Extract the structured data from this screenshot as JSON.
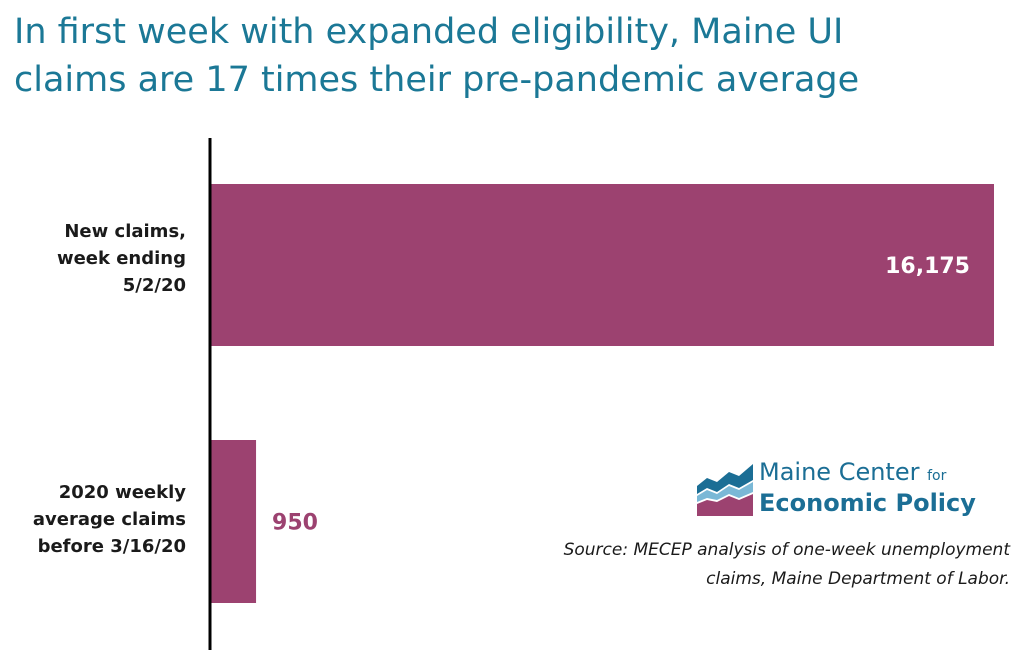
{
  "title_lines": [
    "In first week with expanded  eligibility, Maine UI",
    "claims are 17 times their pre-pandemic average"
  ],
  "chart_data": {
    "type": "bar",
    "orientation": "horizontal",
    "categories": [
      [
        "New claims,",
        "week ending",
        "5/2/20"
      ],
      [
        "2020 weekly",
        "average claims",
        "before 3/16/20"
      ]
    ],
    "values": [
      16175,
      950
    ],
    "data_labels": [
      "16,175",
      "950"
    ],
    "bar_color": "#9c4270",
    "label_colors": [
      "#ffffff",
      "#9c4270"
    ],
    "xlim": [
      0,
      16175
    ],
    "grid": false
  },
  "logo": {
    "line1": "Maine Center",
    "line1_small": "for",
    "line2": "Economic Policy",
    "colors": {
      "blue": "#1b6e95",
      "light_blue": "#7ab8d6",
      "purple": "#9c4270"
    }
  },
  "source_lines": [
    "Source: MECEP analysis of one-week unemployment",
    "claims, Maine Department of Labor."
  ],
  "colors": {
    "title": "#1b7896",
    "text": "#1a1a1a"
  }
}
